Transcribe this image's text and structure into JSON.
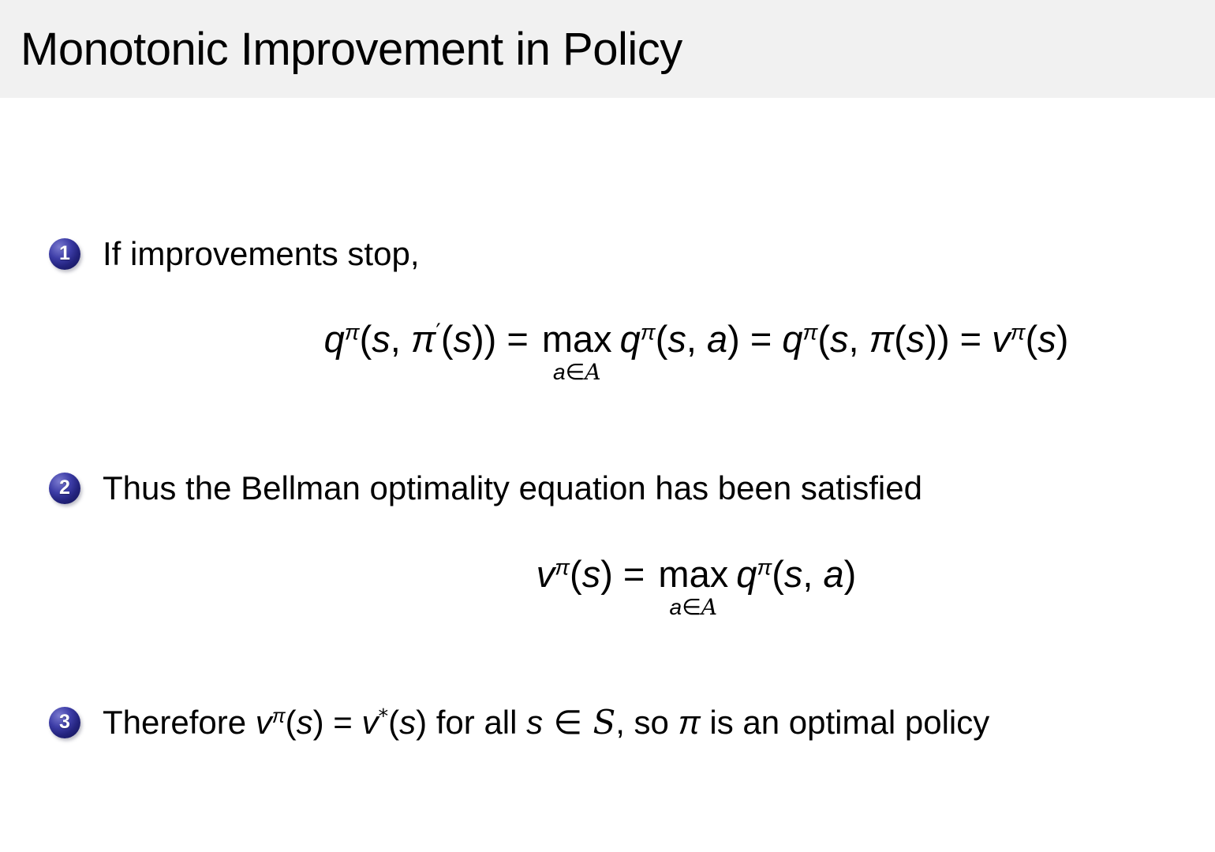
{
  "slide": {
    "title": "Monotonic Improvement in Policy",
    "colors": {
      "title_bar_bg": "#f1f1f1",
      "ball_fill": "#2e2e93",
      "ball_number": "#ffffff",
      "body_bg": "#ffffff",
      "text": "#000000"
    },
    "items": [
      {
        "number": "1",
        "text": "If improvements stop,"
      },
      {
        "number": "2",
        "text": "Thus the Bellman optimality equation has been satisfied"
      },
      {
        "number": "3"
      }
    ],
    "equations": {
      "eq1": {
        "plain": "q^pi(s, pi'(s)) = max_{a in A} q^pi(s, a) = q^pi(s, pi(s)) = v^pi(s)",
        "tokens": [
          {
            "k": "v",
            "t": "q"
          },
          {
            "k": "sup",
            "t": "π"
          },
          {
            "k": "u",
            "t": "("
          },
          {
            "k": "v",
            "t": "s"
          },
          {
            "k": "u",
            "t": ", "
          },
          {
            "k": "v",
            "t": "π"
          },
          {
            "k": "supu",
            "t": "′"
          },
          {
            "k": "u",
            "t": "("
          },
          {
            "k": "v",
            "t": "s"
          },
          {
            "k": "u",
            "t": ")) = "
          },
          {
            "k": "max",
            "label": "max",
            "sub": [
              {
                "k": "v",
                "t": "a"
              },
              {
                "k": "sym",
                "t": "∈"
              },
              {
                "k": "cal",
                "t": "A"
              }
            ]
          },
          {
            "k": "v",
            "t": "q"
          },
          {
            "k": "sup",
            "t": "π"
          },
          {
            "k": "u",
            "t": "("
          },
          {
            "k": "v",
            "t": "s"
          },
          {
            "k": "u",
            "t": ", "
          },
          {
            "k": "v",
            "t": "a"
          },
          {
            "k": "u",
            "t": ") = "
          },
          {
            "k": "v",
            "t": "q"
          },
          {
            "k": "sup",
            "t": "π"
          },
          {
            "k": "u",
            "t": "("
          },
          {
            "k": "v",
            "t": "s"
          },
          {
            "k": "u",
            "t": ", "
          },
          {
            "k": "v",
            "t": "π"
          },
          {
            "k": "u",
            "t": "("
          },
          {
            "k": "v",
            "t": "s"
          },
          {
            "k": "u",
            "t": ")) = "
          },
          {
            "k": "v",
            "t": "v"
          },
          {
            "k": "sup",
            "t": "π"
          },
          {
            "k": "u",
            "t": "("
          },
          {
            "k": "v",
            "t": "s"
          },
          {
            "k": "u",
            "t": ")"
          }
        ]
      },
      "eq2": {
        "plain": "v^pi(s) = max_{a in A} q^pi(s, a)",
        "tokens": [
          {
            "k": "v",
            "t": "v"
          },
          {
            "k": "sup",
            "t": "π"
          },
          {
            "k": "u",
            "t": "("
          },
          {
            "k": "v",
            "t": "s"
          },
          {
            "k": "u",
            "t": ") = "
          },
          {
            "k": "max",
            "label": "max",
            "sub": [
              {
                "k": "v",
                "t": "a"
              },
              {
                "k": "sym",
                "t": "∈"
              },
              {
                "k": "cal",
                "t": "A"
              }
            ]
          },
          {
            "k": "v",
            "t": "q"
          },
          {
            "k": "sup",
            "t": "π"
          },
          {
            "k": "u",
            "t": "("
          },
          {
            "k": "v",
            "t": "s"
          },
          {
            "k": "u",
            "t": ", "
          },
          {
            "k": "v",
            "t": "a"
          },
          {
            "k": "u",
            "t": ")"
          }
        ]
      }
    },
    "item3_line": {
      "plain": "Therefore v^pi(s) = v^*(s) for all s in S, so pi is an optimal policy",
      "tokens": [
        {
          "k": "u",
          "t": "Therefore "
        },
        {
          "k": "v",
          "t": "v"
        },
        {
          "k": "sup",
          "t": "π"
        },
        {
          "k": "u",
          "t": "("
        },
        {
          "k": "v",
          "t": "s"
        },
        {
          "k": "u",
          "t": ") = "
        },
        {
          "k": "v",
          "t": "v"
        },
        {
          "k": "supu",
          "t": "*"
        },
        {
          "k": "u",
          "t": "("
        },
        {
          "k": "v",
          "t": "s"
        },
        {
          "k": "u",
          "t": ")"
        },
        {
          "k": "u",
          "t": " for all "
        },
        {
          "k": "v",
          "t": "s"
        },
        {
          "k": "sym",
          "t": " ∈ "
        },
        {
          "k": "cal",
          "t": "S"
        },
        {
          "k": "u",
          "t": ", so "
        },
        {
          "k": "v",
          "t": "π"
        },
        {
          "k": "u",
          "t": " is an optimal policy"
        }
      ]
    }
  }
}
